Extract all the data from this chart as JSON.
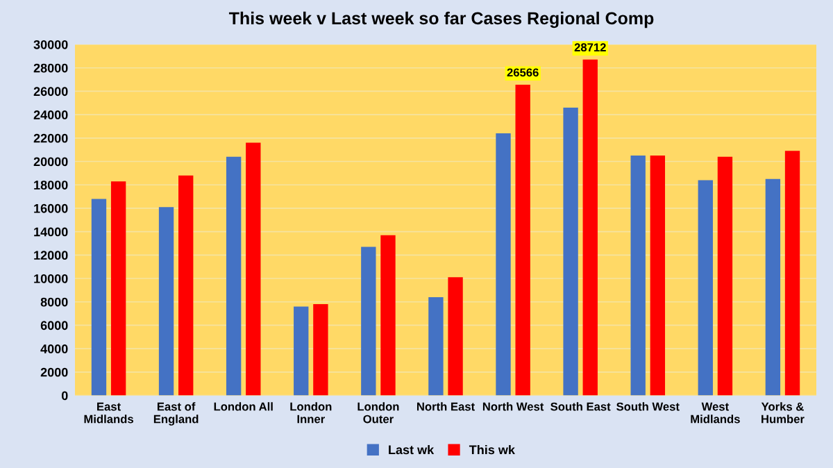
{
  "chart_data": {
    "type": "bar",
    "title": "This week v Last week so far Cases Regional Comp",
    "categories": [
      "East\nMidlands",
      "East of\nEngland",
      "London All",
      "London\nInner",
      "London\nOuter",
      "North East",
      "North West",
      "South East",
      "South West",
      "West\nMidlands",
      "Yorks &\nHumber"
    ],
    "series": [
      {
        "name": "Last wk",
        "color": "#4472c4",
        "values": [
          16800,
          16100,
          20400,
          7600,
          12700,
          8400,
          22400,
          24600,
          20500,
          18400,
          18500
        ]
      },
      {
        "name": "This wk",
        "color": "#ff0000",
        "values": [
          18300,
          18800,
          21600,
          7800,
          13700,
          10100,
          26566,
          28712,
          20500,
          20400,
          20900
        ],
        "value_labels": [
          null,
          null,
          null,
          null,
          null,
          null,
          "26566",
          "28712",
          null,
          null,
          null
        ]
      }
    ],
    "ylim": [
      0,
      30000
    ],
    "yticks": [
      0,
      2000,
      4000,
      6000,
      8000,
      10000,
      12000,
      14000,
      16000,
      18000,
      20000,
      22000,
      24000,
      26000,
      28000,
      30000
    ],
    "grid": "y",
    "legend": "bottom"
  }
}
